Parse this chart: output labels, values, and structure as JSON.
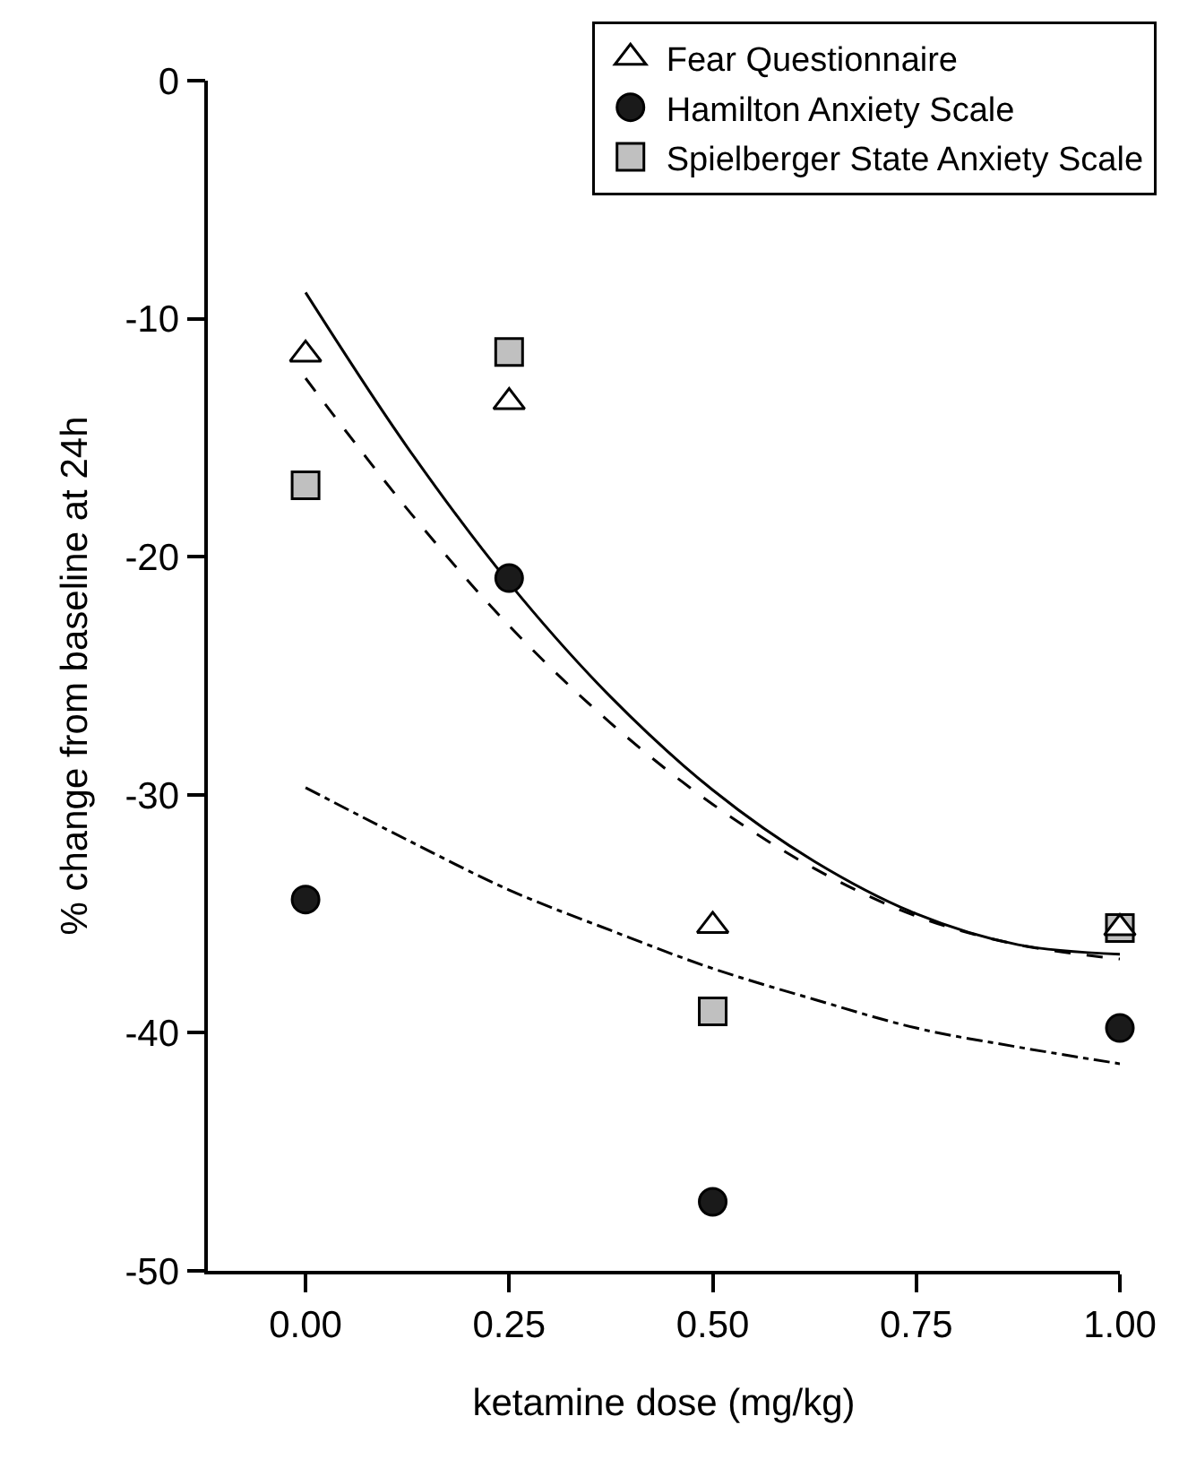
{
  "chart_data": {
    "type": "scatter",
    "xlabel": "ketamine dose (mg/kg)",
    "ylabel": "% change from baseline at 24h",
    "xlim": [
      -0.12,
      1.0
    ],
    "ylim": [
      -50,
      0
    ],
    "xticks": [
      {
        "value": 0,
        "label": "0.00"
      },
      {
        "value": 0.25,
        "label": "0.25"
      },
      {
        "value": 0.5,
        "label": "0.50"
      },
      {
        "value": 0.75,
        "label": "0.75"
      },
      {
        "value": 1,
        "label": "1.00"
      }
    ],
    "yticks": [
      0,
      -10,
      -20,
      -30,
      -40,
      -50
    ],
    "legend": "top right",
    "series": [
      {
        "name": "Fear Questionnaire",
        "marker": "triangle",
        "line_style": "solid",
        "color": "#ffffff",
        "x": [
          0,
          0.25,
          0.5,
          1.0
        ],
        "values": [
          -11.5,
          -13.5,
          -35.5,
          -35.6
        ]
      },
      {
        "name": "Hamilton Anxiety Scale",
        "marker": "circle",
        "line_style": "dashdot",
        "color": "#1a1a1a",
        "x": [
          0,
          0.25,
          0.5,
          1.0
        ],
        "values": [
          -34.4,
          -20.9,
          -47.1,
          -39.8
        ]
      },
      {
        "name": "Spielberger State Anxiety Scale",
        "marker": "square",
        "line_style": "dashed",
        "color": "#c0c0c0",
        "x": [
          0,
          0.25,
          0.5,
          1.0
        ],
        "values": [
          -17.0,
          -11.4,
          -39.1,
          -35.6
        ]
      },
      {
        "type": "line",
        "line_style": "solid",
        "color": "#000000",
        "x": [
          0,
          0.125,
          0.25,
          0.375,
          0.5,
          0.625,
          0.75,
          0.875,
          1.0
        ],
        "values": [
          -8.9,
          -15.4,
          -21.1,
          -25.9,
          -29.8,
          -32.8,
          -35.0,
          -36.3,
          -36.7
        ]
      },
      {
        "type": "line",
        "line_style": "dashdot",
        "color": "#000000",
        "x": [
          0,
          0.125,
          0.25,
          0.375,
          0.5,
          0.625,
          0.75,
          0.875,
          1.0
        ],
        "values": [
          -29.7,
          -31.9,
          -34.0,
          -35.7,
          -37.3,
          -38.6,
          -39.8,
          -40.6,
          -41.3
        ]
      },
      {
        "type": "line",
        "line_style": "dashed",
        "color": "#000000",
        "x": [
          0,
          0.125,
          0.25,
          0.375,
          0.5,
          0.625,
          0.75,
          0.875,
          1.0
        ],
        "values": [
          -12.5,
          -18.0,
          -22.9,
          -27.0,
          -30.4,
          -33.1,
          -35.1,
          -36.3,
          -36.9
        ]
      }
    ]
  }
}
